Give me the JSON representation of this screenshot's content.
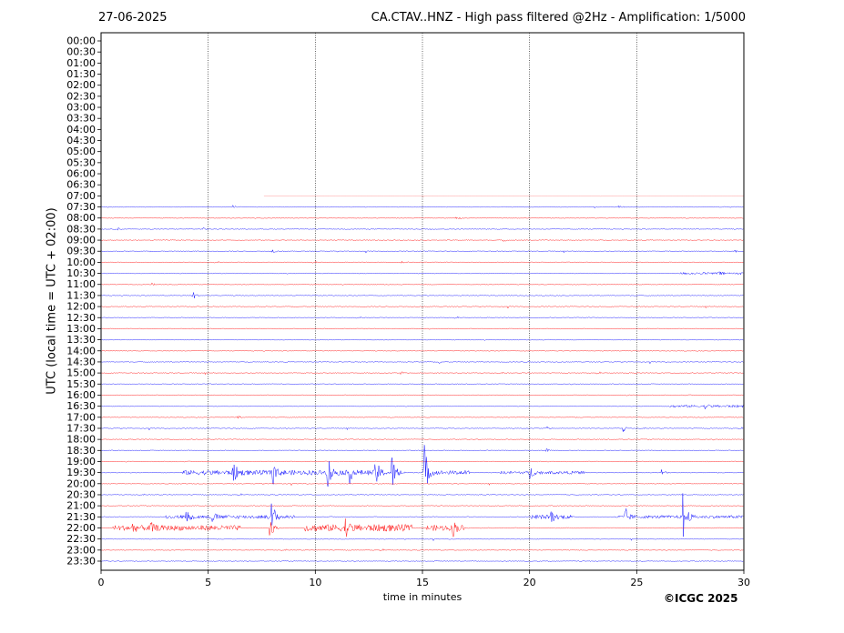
{
  "date": "27-06-2025",
  "title": "CA.CTAV..HNZ - High pass filtered @2Hz - Amplification: 1/5000",
  "copyright": "©ICGC 2025",
  "chart_data": {
    "type": "line",
    "kind": "helicorder",
    "xlabel": "time in minutes",
    "ylabel": "UTC (local time = UTC + 02:00)",
    "xlim": [
      0,
      30
    ],
    "x_ticks": [
      0,
      5,
      10,
      15,
      20,
      25,
      30
    ],
    "vertical_gridlines_minutes": [
      5,
      10,
      15,
      20,
      25
    ],
    "row_labels": [
      "00:00",
      "00:30",
      "01:00",
      "01:30",
      "02:00",
      "02:30",
      "03:00",
      "03:30",
      "04:00",
      "04:30",
      "05:00",
      "05:30",
      "06:00",
      "06:30",
      "07:00",
      "07:30",
      "08:00",
      "08:30",
      "09:00",
      "09:30",
      "10:00",
      "10:30",
      "11:00",
      "11:30",
      "12:00",
      "12:30",
      "13:00",
      "13:30",
      "14:00",
      "14:30",
      "15:00",
      "15:30",
      "16:00",
      "16:30",
      "17:00",
      "17:30",
      "18:00",
      "18:30",
      "19:00",
      "19:30",
      "20:00",
      "20:30",
      "21:00",
      "21:30",
      "22:00",
      "22:30",
      "23:00",
      "23:30"
    ],
    "trace_colors": [
      "#ff0000",
      "#0000ff"
    ],
    "first_trace_row": "07:00",
    "first_trace_start_minute": 7.6,
    "events": [
      {
        "row": "07:30",
        "minute": 6.2,
        "amplitude": 0.12
      },
      {
        "row": "07:30",
        "minute": 24.2,
        "amplitude": 0.1
      },
      {
        "row": "08:00",
        "minute": 16.6,
        "amplitude": 0.15
      },
      {
        "row": "08:30",
        "minute": 0.8,
        "amplitude": 0.12
      },
      {
        "row": "08:30",
        "minute": 4.8,
        "amplitude": 0.1
      },
      {
        "row": "09:00",
        "minute": 18.8,
        "amplitude": 0.12
      },
      {
        "row": "09:30",
        "minute": 8.0,
        "amplitude": 0.18
      },
      {
        "row": "09:30",
        "minute": 29.6,
        "amplitude": 0.1
      },
      {
        "row": "10:00",
        "minute": 14.0,
        "amplitude": 0.15
      },
      {
        "row": "10:30",
        "minute": 28.8,
        "amplitude": 0.12
      },
      {
        "row": "11:00",
        "minute": 2.4,
        "amplitude": 0.1
      },
      {
        "row": "11:30",
        "minute": 4.3,
        "amplitude": 0.4
      },
      {
        "row": "14:30",
        "minute": 15.8,
        "amplitude": 0.12
      },
      {
        "row": "15:00",
        "minute": 14.0,
        "amplitude": 0.12
      },
      {
        "row": "16:30",
        "minute": 28.2,
        "amplitude": 0.15
      },
      {
        "row": "17:00",
        "minute": 6.4,
        "amplitude": 0.15
      },
      {
        "row": "17:30",
        "minute": 24.4,
        "amplitude": 0.35
      },
      {
        "row": "17:30",
        "minute": 20.8,
        "amplitude": 0.15
      },
      {
        "row": "18:30",
        "minute": 20.8,
        "amplitude": 0.15
      },
      {
        "row": "19:30",
        "minute": 15.1,
        "amplitude": 2.6
      },
      {
        "row": "19:30",
        "minute": 10.6,
        "amplitude": 1.6
      },
      {
        "row": "19:30",
        "minute": 12.8,
        "amplitude": 1.6
      },
      {
        "row": "19:30",
        "minute": 13.6,
        "amplitude": 1.4
      },
      {
        "row": "19:30",
        "minute": 8.0,
        "amplitude": 1.2
      },
      {
        "row": "19:30",
        "minute": 6.2,
        "amplitude": 0.9
      },
      {
        "row": "19:30",
        "minute": 11.6,
        "amplitude": 0.9
      },
      {
        "row": "19:30",
        "minute": 20.0,
        "amplitude": 0.7
      },
      {
        "row": "19:30",
        "minute": 26.2,
        "amplitude": 0.3
      },
      {
        "row": "21:30",
        "minute": 8.0,
        "amplitude": 1.3
      },
      {
        "row": "21:30",
        "minute": 27.2,
        "amplitude": 2.3
      },
      {
        "row": "21:30",
        "minute": 24.5,
        "amplitude": 0.7
      },
      {
        "row": "21:30",
        "minute": 21.0,
        "amplitude": 0.6
      },
      {
        "row": "21:30",
        "minute": 4.0,
        "amplitude": 0.5
      },
      {
        "row": "21:30",
        "minute": 5.2,
        "amplitude": 0.5
      },
      {
        "row": "22:00",
        "minute": 7.9,
        "amplitude": 1.1
      },
      {
        "row": "22:00",
        "minute": 11.4,
        "amplitude": 0.8
      },
      {
        "row": "22:00",
        "minute": 16.4,
        "amplitude": 0.8
      },
      {
        "row": "22:00",
        "minute": 2.3,
        "amplitude": 0.5
      },
      {
        "row": "22:00",
        "minute": 1.5,
        "amplitude": 0.4
      }
    ],
    "noise_bursts": [
      {
        "row": "19:30",
        "from": 3.8,
        "to": 14.2,
        "amplitude": 0.18
      },
      {
        "row": "19:30",
        "from": 15.0,
        "to": 17.2,
        "amplitude": 0.15
      },
      {
        "row": "19:30",
        "from": 18.6,
        "to": 22.6,
        "amplitude": 0.1
      },
      {
        "row": "21:30",
        "from": 3.0,
        "to": 9.0,
        "amplitude": 0.12
      },
      {
        "row": "21:30",
        "from": 20.0,
        "to": 22.0,
        "amplitude": 0.15
      },
      {
        "row": "21:30",
        "from": 24.0,
        "to": 30.0,
        "amplitude": 0.1
      },
      {
        "row": "22:00",
        "from": 0.5,
        "to": 6.5,
        "amplitude": 0.2
      },
      {
        "row": "22:00",
        "from": 9.5,
        "to": 14.5,
        "amplitude": 0.28
      },
      {
        "row": "22:00",
        "from": 15.2,
        "to": 17.0,
        "amplitude": 0.22
      },
      {
        "row": "16:30",
        "from": 26.5,
        "to": 30.0,
        "amplitude": 0.08
      },
      {
        "row": "10:30",
        "from": 27.0,
        "to": 30.0,
        "amplitude": 0.07
      }
    ]
  }
}
